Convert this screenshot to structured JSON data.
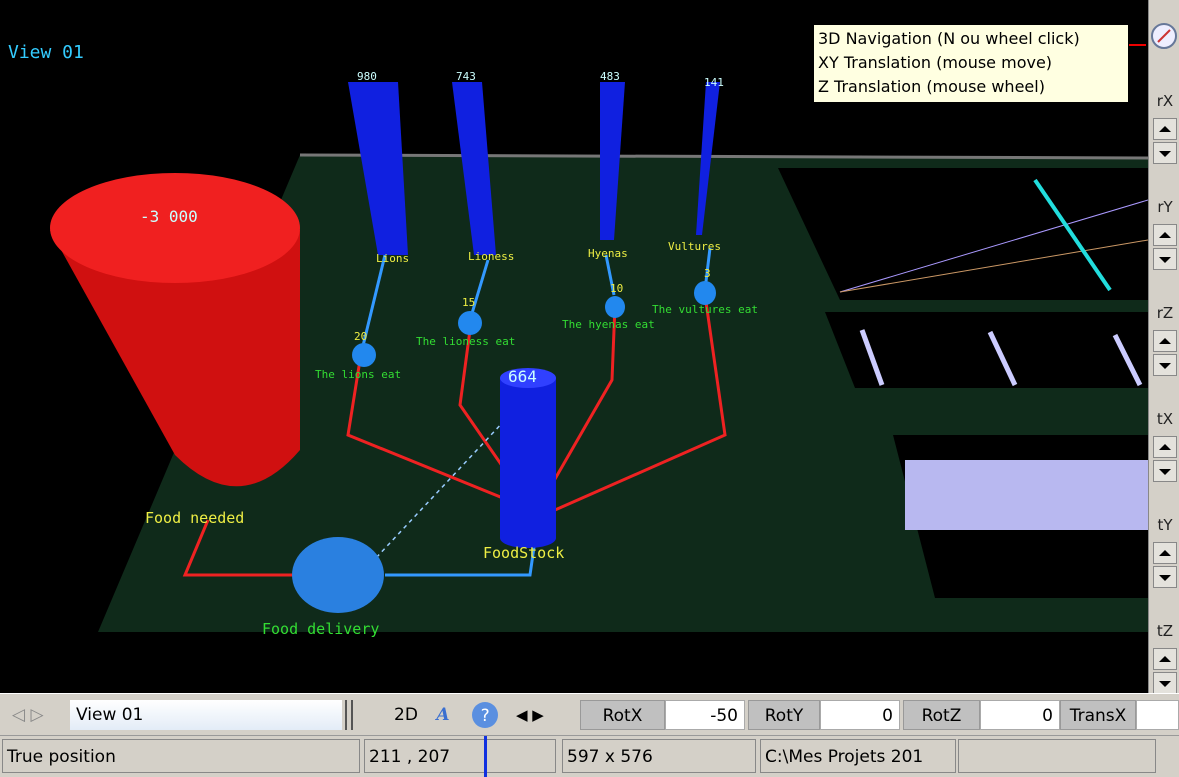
{
  "scene": {
    "view_title": "View 01",
    "nodes": [
      {
        "value": "-3 000",
        "label": "Food needed"
      },
      {
        "value": "664",
        "label": "FoodStock"
      },
      {
        "label": "Food delivery"
      }
    ],
    "species": [
      {
        "value": "980",
        "name": "Lions",
        "rate": "20",
        "flow": "The lions eat"
      },
      {
        "value": "743",
        "name": "Lioness",
        "rate": "15",
        "flow": "The lioness eat"
      },
      {
        "value": "483",
        "name": "Hyenas",
        "rate": "10",
        "flow": "The hyenas eat"
      },
      {
        "value": "141",
        "name": "Vultures",
        "rate": "3",
        "flow": "The vultures eat"
      }
    ]
  },
  "tooltip": {
    "lines": [
      "3D Navigation (N ou wheel click)",
      "XY Translation (mouse move)",
      "Z Translation (mouse wheel)"
    ]
  },
  "side_buttons": [
    "rX",
    "rY",
    "rZ",
    "tX",
    "tY",
    "tZ"
  ],
  "toolbar": {
    "view": "View 01",
    "mode": "2D",
    "rot_x_label": "RotX",
    "rot_x": "-50",
    "rot_y_label": "RotY",
    "rot_y": "0",
    "rot_z_label": "RotZ",
    "rot_z": "0",
    "trans_x_label": "TransX"
  },
  "status": {
    "mode": "True position",
    "position": "211 , 207",
    "size": "597 x 576",
    "path": "C:\\Mes Projets 201"
  }
}
